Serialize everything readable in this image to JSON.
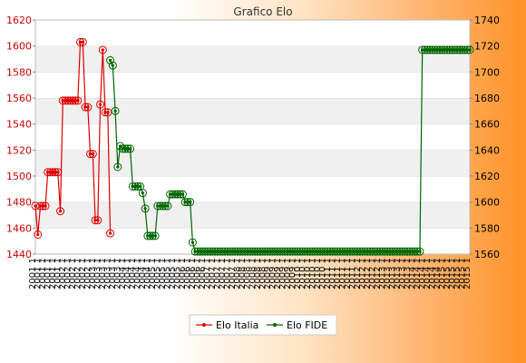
{
  "chart_data": {
    "type": "line",
    "title": "Grafico Elo",
    "y_left": {
      "ylim": [
        1440,
        1620
      ],
      "ticks": [
        1440,
        1460,
        1480,
        1500,
        1520,
        1540,
        1560,
        1580,
        1600,
        1620
      ]
    },
    "y_right": {
      "ylim": [
        1560,
        1740
      ],
      "ticks": [
        1560,
        1580,
        1600,
        1620,
        1640,
        1660,
        1680,
        1700,
        1720,
        1740
      ]
    },
    "grid": "horizontal bands",
    "legend_position": "bottom",
    "series": [
      {
        "name": "Elo Italia",
        "axis": "left",
        "color": "#dd0000",
        "values": [
          1477,
          1455,
          1477,
          1477,
          1477,
          1503,
          1503,
          1503,
          1503,
          1503,
          1473,
          1558,
          1558,
          1558,
          1558,
          1558,
          1558,
          1558,
          1603,
          1603,
          1553,
          1553,
          1517,
          1517,
          1466,
          1466,
          1555,
          1597,
          1549,
          1549,
          1456
        ]
      },
      {
        "name": "Elo FIDE",
        "axis": "right",
        "color": "#006600",
        "values": [
          null,
          null,
          null,
          null,
          null,
          null,
          null,
          null,
          null,
          null,
          null,
          null,
          null,
          null,
          null,
          null,
          null,
          null,
          null,
          null,
          null,
          null,
          null,
          null,
          null,
          null,
          null,
          null,
          null,
          null,
          1709,
          1705,
          1670,
          1627,
          1643,
          1641,
          1641,
          1641,
          1641,
          1612,
          1612,
          1612,
          1612,
          1607,
          1595,
          1574,
          1574,
          1574,
          1574,
          1597,
          1597,
          1597,
          1597,
          1597,
          1606,
          1606,
          1606,
          1606,
          1606,
          1606,
          1600,
          1600,
          1600,
          1569,
          1562,
          1562,
          1562,
          1562,
          1562,
          1562,
          1562,
          1562,
          1562,
          1562,
          1562,
          1562,
          1562,
          1562,
          1562,
          1562,
          1562,
          1562,
          1562,
          1562,
          1562,
          1562,
          1562,
          1562,
          1562,
          1562,
          1562,
          1562,
          1562,
          1562,
          1562,
          1562,
          1562,
          1562,
          1562,
          1562,
          1562,
          1562,
          1562,
          1562,
          1562,
          1562,
          1562,
          1562,
          1562,
          1562,
          1562,
          1562,
          1562,
          1562,
          1562,
          1562,
          1562,
          1562,
          1562,
          1562,
          1562,
          1562,
          1562,
          1562,
          1562,
          1562,
          1562,
          1562,
          1562,
          1562,
          1562,
          1562,
          1562,
          1562,
          1562,
          1562,
          1562,
          1562,
          1562,
          1562,
          1562,
          1562,
          1562,
          1562,
          1562,
          1562,
          1562,
          1562,
          1562,
          1562,
          1562,
          1562,
          1562,
          1562,
          1562,
          1717,
          1717,
          1717,
          1717,
          1717,
          1717,
          1717,
          1717,
          1717,
          1717,
          1717,
          1717,
          1717,
          1717,
          1717,
          1717,
          1717,
          1717,
          1717,
          1717
        ]
      }
    ],
    "x_labels_pattern": [
      "2001 1",
      "2002 1",
      "2003 1",
      "2004 1",
      "2005 1",
      "2006 1",
      "2007 1",
      "2008 1",
      "2009 1",
      "2010 1",
      "2011 1",
      "2012 1",
      "2013 1",
      "2014 1",
      "2015 1"
    ]
  }
}
